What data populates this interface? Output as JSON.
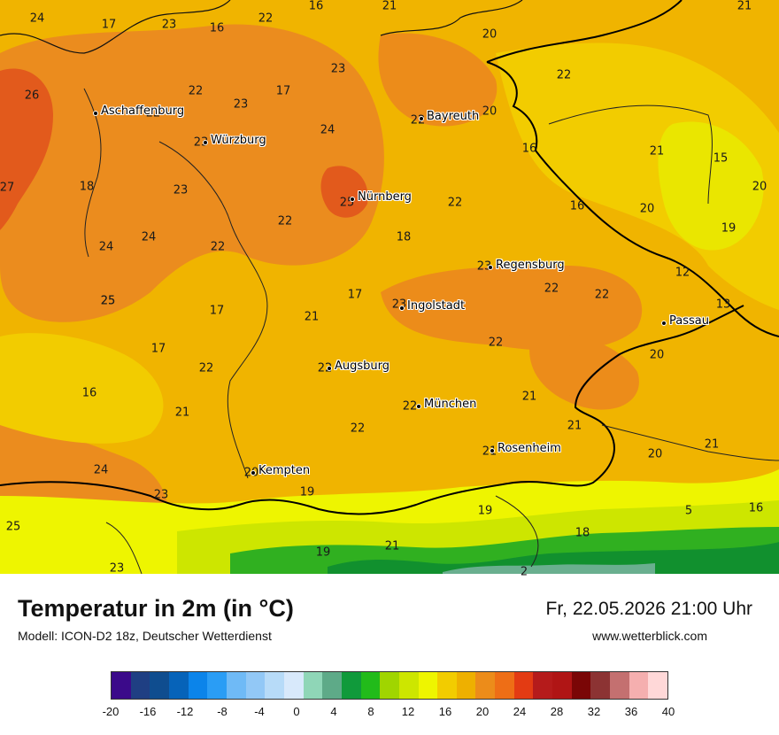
{
  "title": "Temperatur in 2m (in °C)",
  "model": "Modell: ICON-D2 18z, Deutscher Wetterdienst",
  "datetime": "Fr, 22.05.2026 21:00 Uhr",
  "website": "www.wetterblick.com",
  "cities": [
    {
      "name": "Aschaffenburg"
    },
    {
      "name": "Würzburg"
    },
    {
      "name": "Bayreuth"
    },
    {
      "name": "Nürnberg"
    },
    {
      "name": "Regensburg"
    },
    {
      "name": "Ingolstadt"
    },
    {
      "name": "Passau"
    },
    {
      "name": "Augsburg"
    },
    {
      "name": "München"
    },
    {
      "name": "Rosenheim"
    },
    {
      "name": "Kempten"
    }
  ],
  "values": [
    {
      "v": "24"
    },
    {
      "v": "17"
    },
    {
      "v": "23"
    },
    {
      "v": "16"
    },
    {
      "v": "22"
    },
    {
      "v": "16"
    },
    {
      "v": "21"
    },
    {
      "v": "21"
    },
    {
      "v": "20"
    },
    {
      "v": "22"
    },
    {
      "v": "23"
    },
    {
      "v": "22"
    },
    {
      "v": "26"
    },
    {
      "v": "22"
    },
    {
      "v": "17"
    },
    {
      "v": "23"
    },
    {
      "v": "22"
    },
    {
      "v": "20"
    },
    {
      "v": "23"
    },
    {
      "v": "24"
    },
    {
      "v": "21"
    },
    {
      "v": "15"
    },
    {
      "v": "25"
    },
    {
      "v": "27"
    },
    {
      "v": "18"
    },
    {
      "v": "16"
    },
    {
      "v": "23"
    },
    {
      "v": "20"
    },
    {
      "v": "24"
    },
    {
      "v": "22"
    },
    {
      "v": "16"
    },
    {
      "v": "20"
    },
    {
      "v": "22"
    },
    {
      "v": "19"
    },
    {
      "v": "24"
    },
    {
      "v": "18"
    },
    {
      "v": "25"
    },
    {
      "v": "22"
    },
    {
      "v": "23"
    },
    {
      "v": "12"
    },
    {
      "v": "25"
    },
    {
      "v": "22"
    },
    {
      "v": "22"
    },
    {
      "v": "17"
    },
    {
      "v": "17"
    },
    {
      "v": "23"
    },
    {
      "v": "13"
    },
    {
      "v": "21"
    },
    {
      "v": "22"
    },
    {
      "v": "17"
    },
    {
      "v": "20"
    },
    {
      "v": "22"
    },
    {
      "v": "22"
    },
    {
      "v": "16"
    },
    {
      "v": "21"
    },
    {
      "v": "21"
    },
    {
      "v": "22"
    },
    {
      "v": "21"
    },
    {
      "v": "22"
    },
    {
      "v": "21"
    },
    {
      "v": "24"
    },
    {
      "v": "21"
    },
    {
      "v": "20"
    },
    {
      "v": "20"
    },
    {
      "v": "19"
    },
    {
      "v": "23"
    },
    {
      "v": "19"
    },
    {
      "v": "25"
    },
    {
      "v": "5"
    },
    {
      "v": "16"
    },
    {
      "v": "18"
    },
    {
      "v": "23"
    },
    {
      "v": "19"
    },
    {
      "v": "21"
    },
    {
      "v": "2"
    }
  ],
  "colors": {
    "base": "#f0b400",
    "warm": "#eb8c1e",
    "hot": "#e25a1c",
    "mild": "#f2cc00",
    "cool": "#eae600",
    "lightgreen": "#cde600",
    "green": "#30b020",
    "darkgreen": "#11902e",
    "teal": "#6aaf8f"
  },
  "legend": {
    "colors": [
      "#3b0a8a",
      "#1f3f83",
      "#0f4d8f",
      "#0663b9",
      "#0b84ea",
      "#2a9df5",
      "#6fbaf6",
      "#92c8f6",
      "#b7dbf8",
      "#d8e9fb",
      "#8fd6b7",
      "#5eaa88",
      "#109a3b",
      "#22bb1a",
      "#a0d500",
      "#cde600",
      "#eef500",
      "#f2cc00",
      "#eeb000",
      "#ec8c1a",
      "#ee6e16",
      "#e33b13",
      "#b51b1b",
      "#b01515",
      "#7a0606",
      "#8c3333",
      "#c47070",
      "#f5afaf",
      "#ffd8d8"
    ],
    "ticks": [
      "-20",
      "-16",
      "-12",
      "-8",
      "-4",
      "0",
      "4",
      "8",
      "12",
      "16",
      "20",
      "24",
      "28",
      "32",
      "36",
      "40"
    ]
  }
}
